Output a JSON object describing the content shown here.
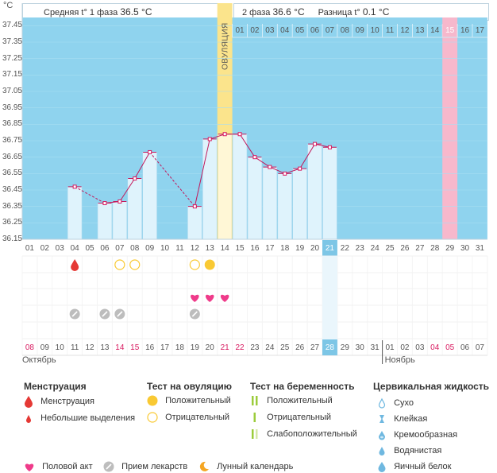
{
  "header": {
    "unit": "°C",
    "phase1_label": "Средняя t° 1 фаза",
    "phase1_value": "36.5 °C",
    "phase2_label": "2 фаза",
    "phase2_value": "36.6 °C",
    "diff_label": "Разница t°",
    "diff_value": "0.1 °C"
  },
  "ovulation_label": "ОВУЛЯЦИЯ",
  "colors": {
    "bg": "#8fd3ee",
    "bar": "#dff3fc",
    "bar_border": "#a9d8ee",
    "line": "#c2185b",
    "marker": "#d81b60",
    "ovulation": "#fbe48c",
    "ovulation_bar": "#fff7d6",
    "pink_col": "#f7b8cc",
    "highlight_cell": "#7dc6e6",
    "red": "#e53935",
    "yellow": "#f9c933",
    "heart": "#ef3b8a",
    "pill": "#bdbdbd",
    "green": "#9ccc3c"
  },
  "chart_data": {
    "type": "line",
    "title": "",
    "ylabel": "°C",
    "ylim": [
      36.15,
      37.5
    ],
    "y_ticks": [
      "37.45",
      "37.35",
      "37.25",
      "37.15",
      "37.05",
      "36.95",
      "36.85",
      "36.75",
      "36.65",
      "36.55",
      "36.45",
      "36.35",
      "36.25",
      "36.15"
    ],
    "cycle_days": [
      "01",
      "02",
      "03",
      "04",
      "05",
      "06",
      "07",
      "08",
      "09",
      "10",
      "11",
      "12",
      "13",
      "14",
      "15",
      "16",
      "17",
      "18",
      "19",
      "20",
      "21",
      "22",
      "23",
      "24",
      "25",
      "26",
      "27",
      "28",
      "29",
      "30",
      "31"
    ],
    "top_days": [
      "01",
      "02",
      "03",
      "04",
      "05",
      "06",
      "07",
      "08",
      "09",
      "10",
      "11",
      "12",
      "13",
      "14",
      "15",
      "16",
      "17"
    ],
    "temperatures": [
      {
        "day": 4,
        "value": 36.47
      },
      {
        "day": 6,
        "value": 36.37
      },
      {
        "day": 7,
        "value": 36.38
      },
      {
        "day": 8,
        "value": 36.52
      },
      {
        "day": 9,
        "value": 36.68
      },
      {
        "day": 12,
        "value": 36.35
      },
      {
        "day": 13,
        "value": 36.76
      },
      {
        "day": 14,
        "value": 36.79
      },
      {
        "day": 15,
        "value": 36.79
      },
      {
        "day": 16,
        "value": 36.65
      },
      {
        "day": 17,
        "value": 36.59
      },
      {
        "day": 18,
        "value": 36.55
      },
      {
        "day": 19,
        "value": 36.58
      },
      {
        "day": 20,
        "value": 36.73
      },
      {
        "day": 21,
        "value": 36.71
      }
    ],
    "ovulation_day": 14,
    "current_day": 21,
    "pink_day": 29,
    "dates": [
      "08",
      "09",
      "10",
      "11",
      "12",
      "13",
      "14",
      "15",
      "16",
      "17",
      "18",
      "19",
      "20",
      "21",
      "22",
      "23",
      "24",
      "25",
      "26",
      "27",
      "28",
      "29",
      "30",
      "31",
      "01",
      "02",
      "03",
      "04",
      "05",
      "06",
      "07"
    ],
    "red_dates": [
      0,
      6,
      7,
      13,
      14,
      27,
      28
    ],
    "highlight_date_index": 20,
    "month_divider_index": 24,
    "months": [
      "Октябрь",
      "Ноябрь"
    ],
    "events": {
      "menstruation": [
        4
      ],
      "ovulation_test_negative": [
        7,
        8,
        12
      ],
      "ovulation_test_positive": [
        13
      ],
      "intercourse": [
        12,
        13,
        14
      ],
      "medication": [
        4,
        6,
        7,
        12
      ]
    }
  },
  "legend": {
    "menstruation": {
      "title": "Менструация",
      "items": [
        "Менструация",
        "Небольшие выделения"
      ]
    },
    "ovulation_test": {
      "title": "Тест на овуляцию",
      "items": [
        "Положительный",
        "Отрицательный"
      ]
    },
    "pregnancy_test": {
      "title": "Тест на беременность",
      "items": [
        "Положительный",
        "Отрицательный",
        "Слабоположительный"
      ]
    },
    "cervical": {
      "title": "Цервикальная жидкость",
      "items": [
        "Сухо",
        "Клейкая",
        "Кремообразная",
        "Водянистая",
        "Яичный белок"
      ]
    },
    "bottom": [
      "Половой акт",
      "Прием лекарств",
      "Лунный календарь"
    ]
  }
}
